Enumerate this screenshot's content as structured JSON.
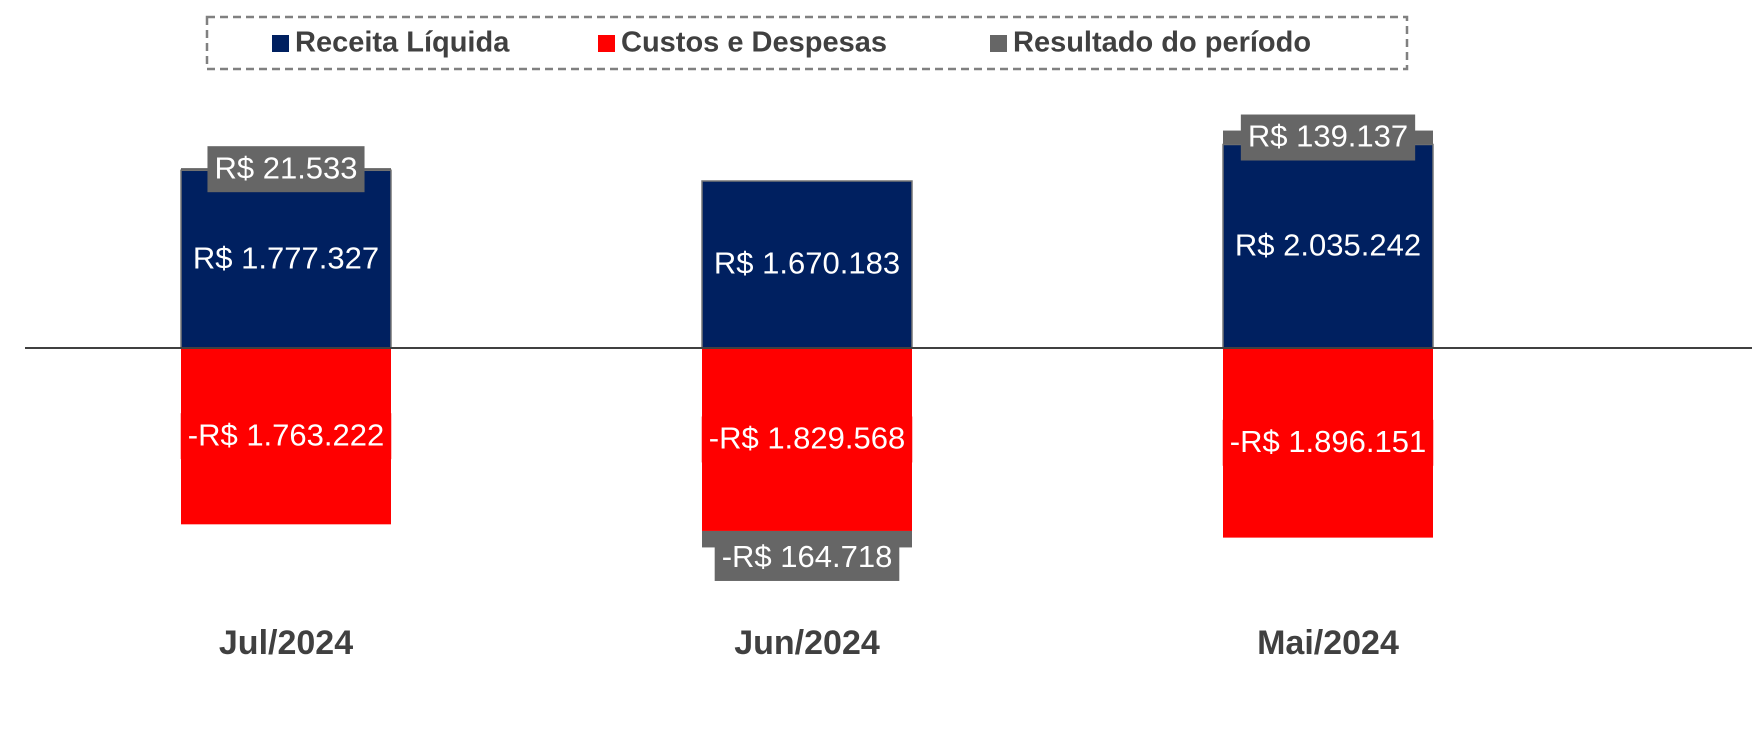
{
  "chart_data": {
    "type": "bar",
    "stacked": true,
    "categories": [
      "Jul/2024",
      "Jun/2024",
      "Mai/2024"
    ],
    "ylim": [
      -2520000,
      2480000
    ],
    "legend": "top",
    "series": [
      {
        "name": "Receita Líquida",
        "color": "#002060",
        "values": [
          1777327,
          1670183,
          2035242
        ],
        "value_labels": [
          "R$ 1.777.327",
          "R$ 1.670.183",
          "R$ 2.035.242"
        ]
      },
      {
        "name": "Custos e Despesas",
        "color": "#ff0000",
        "values": [
          -1763222,
          -1829568,
          -1896151
        ],
        "value_labels": [
          "-R$ 1.763.222",
          "-R$ 1.829.568",
          "-R$ 1.896.151"
        ]
      },
      {
        "name": "Resultado do período",
        "color": "#666666",
        "values": [
          21533,
          -164718,
          139137
        ],
        "value_labels": [
          "R$ 21.533",
          "-R$ 164.718",
          "R$ 139.137"
        ]
      }
    ]
  }
}
